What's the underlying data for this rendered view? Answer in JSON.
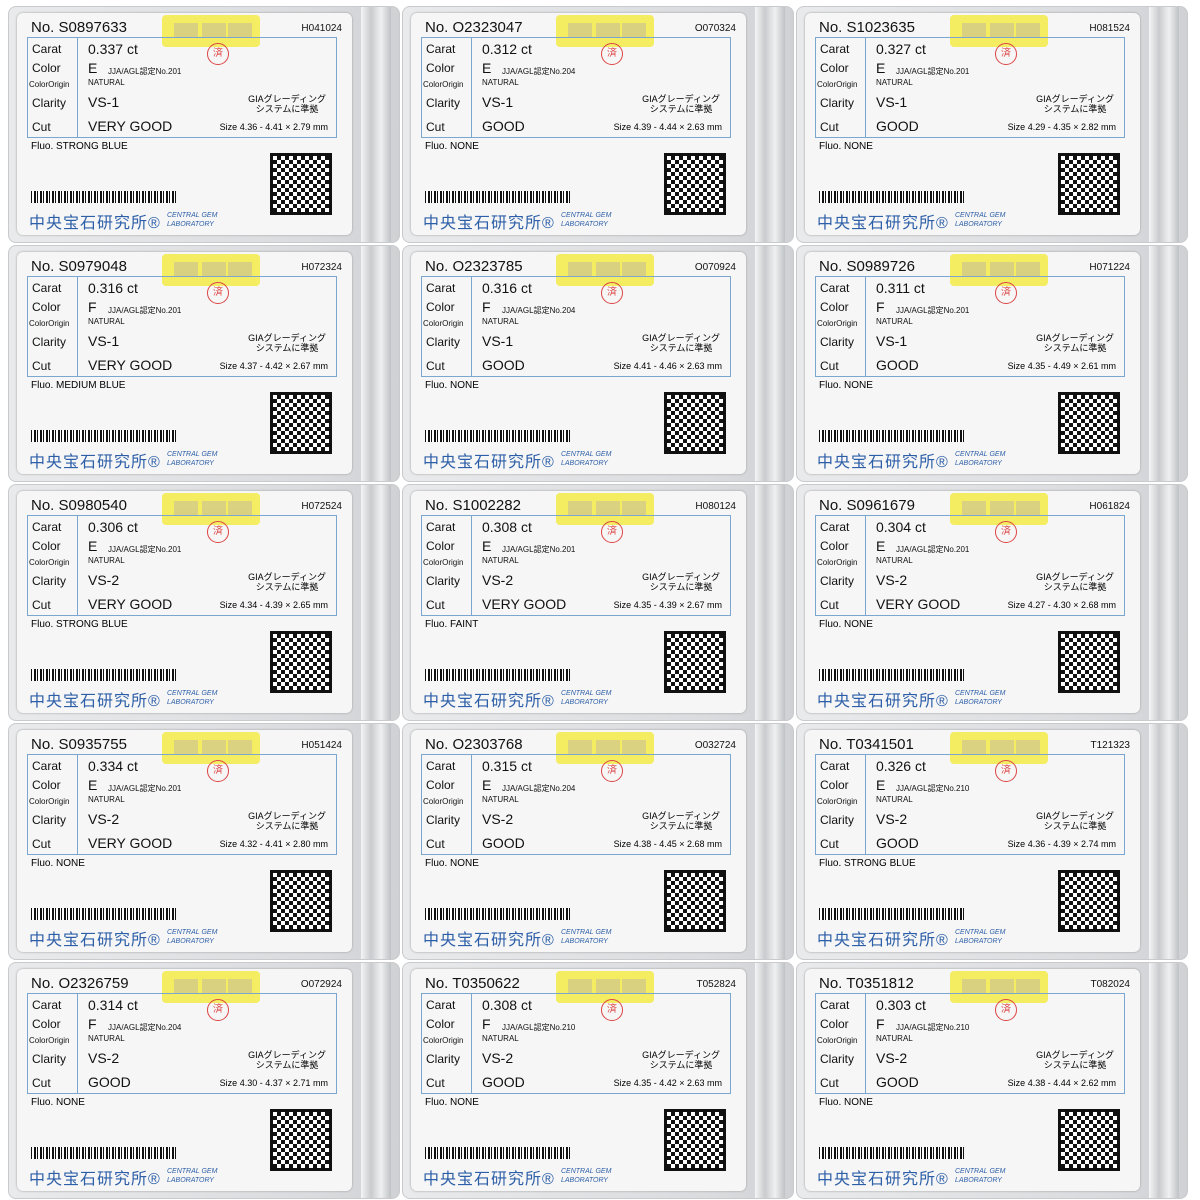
{
  "labels": {
    "no": "No.",
    "carat": "Carat",
    "color": "Color",
    "color_origin": "ColorOrigin",
    "clarity": "Clarity",
    "cut": "Cut",
    "ct": "ct",
    "fluo": "Fluo.",
    "size": "Size",
    "gia1": "GIAグレーディング",
    "gia2": "システムに準拠",
    "cert_prefix": "JJA/AGL認定No.",
    "lab_jp": "中央宝石研究所®",
    "lab_en1": "CENTRAL GEM",
    "lab_en2": "LABORATORY",
    "stamp": "済"
  },
  "colors": {
    "table_border": "#7aa6cf",
    "logo_blue": "#2d5fa8",
    "tag_yellow": "#f4ec5a",
    "stamp_red": "#dd4444"
  },
  "cards": [
    {
      "no": "S0897633",
      "code": "H041024",
      "carat": "0.337",
      "color": "E",
      "cert": "201",
      "origin": "NATURAL",
      "clarity": "VS-1",
      "cut": "VERY GOOD",
      "size": "4.36 - 4.41 × 2.79 mm",
      "fluo": "STRONG BLUE"
    },
    {
      "no": "O2323047",
      "code": "O070324",
      "carat": "0.312",
      "color": "E",
      "cert": "204",
      "origin": "NATURAL",
      "clarity": "VS-1",
      "cut": "GOOD",
      "size": "4.39 - 4.44 × 2.63 mm",
      "fluo": "NONE"
    },
    {
      "no": "S1023635",
      "code": "H081524",
      "carat": "0.327",
      "color": "E",
      "cert": "201",
      "origin": "NATURAL",
      "clarity": "VS-1",
      "cut": "GOOD",
      "size": "4.29 - 4.35 × 2.82 mm",
      "fluo": "NONE"
    },
    {
      "no": "S0979048",
      "code": "H072324",
      "carat": "0.316",
      "color": "F",
      "cert": "201",
      "origin": "NATURAL",
      "clarity": "VS-1",
      "cut": "VERY GOOD",
      "size": "4.37 - 4.42 × 2.67 mm",
      "fluo": "MEDIUM BLUE"
    },
    {
      "no": "O2323785",
      "code": "O070924",
      "carat": "0.316",
      "color": "F",
      "cert": "204",
      "origin": "NATURAL",
      "clarity": "VS-1",
      "cut": "GOOD",
      "size": "4.41 - 4.46 × 2.63 mm",
      "fluo": "NONE"
    },
    {
      "no": "S0989726",
      "code": "H071224",
      "carat": "0.311",
      "color": "F",
      "cert": "201",
      "origin": "NATURAL",
      "clarity": "VS-1",
      "cut": "GOOD",
      "size": "4.35 - 4.49 × 2.61 mm",
      "fluo": "NONE"
    },
    {
      "no": "S0980540",
      "code": "H072524",
      "carat": "0.306",
      "color": "E",
      "cert": "201",
      "origin": "NATURAL",
      "clarity": "VS-2",
      "cut": "VERY GOOD",
      "size": "4.34 - 4.39 × 2.65 mm",
      "fluo": "STRONG BLUE"
    },
    {
      "no": "S1002282",
      "code": "H080124",
      "carat": "0.308",
      "color": "E",
      "cert": "201",
      "origin": "NATURAL",
      "clarity": "VS-2",
      "cut": "VERY GOOD",
      "size": "4.35 - 4.39 × 2.67 mm",
      "fluo": "FAINT"
    },
    {
      "no": "S0961679",
      "code": "H061824",
      "carat": "0.304",
      "color": "E",
      "cert": "201",
      "origin": "NATURAL",
      "clarity": "VS-2",
      "cut": "VERY GOOD",
      "size": "4.27 - 4.30 × 2.68 mm",
      "fluo": "NONE"
    },
    {
      "no": "S0935755",
      "code": "H051424",
      "carat": "0.334",
      "color": "E",
      "cert": "201",
      "origin": "NATURAL",
      "clarity": "VS-2",
      "cut": "VERY GOOD",
      "size": "4.32 - 4.41 × 2.80 mm",
      "fluo": "NONE"
    },
    {
      "no": "O2303768",
      "code": "O032724",
      "carat": "0.315",
      "color": "E",
      "cert": "204",
      "origin": "NATURAL",
      "clarity": "VS-2",
      "cut": "GOOD",
      "size": "4.38 - 4.45 × 2.68 mm",
      "fluo": "NONE"
    },
    {
      "no": "T0341501",
      "code": "T121323",
      "carat": "0.326",
      "color": "E",
      "cert": "210",
      "origin": "NATURAL",
      "clarity": "VS-2",
      "cut": "GOOD",
      "size": "4.36 - 4.39 × 2.74 mm",
      "fluo": "STRONG BLUE"
    },
    {
      "no": "O2326759",
      "code": "O072924",
      "carat": "0.314",
      "color": "F",
      "cert": "204",
      "origin": "NATURAL",
      "clarity": "VS-2",
      "cut": "GOOD",
      "size": "4.30 - 4.37 × 2.71 mm",
      "fluo": "NONE"
    },
    {
      "no": "T0350622",
      "code": "T052824",
      "carat": "0.308",
      "color": "F",
      "cert": "210",
      "origin": "NATURAL",
      "clarity": "VS-2",
      "cut": "GOOD",
      "size": "4.35 - 4.42 × 2.63 mm",
      "fluo": "NONE"
    },
    {
      "no": "T0351812",
      "code": "T082024",
      "carat": "0.303",
      "color": "F",
      "cert": "210",
      "origin": "NATURAL",
      "clarity": "VS-2",
      "cut": "GOOD",
      "size": "4.38 - 4.44 × 2.62 mm",
      "fluo": "NONE"
    }
  ]
}
